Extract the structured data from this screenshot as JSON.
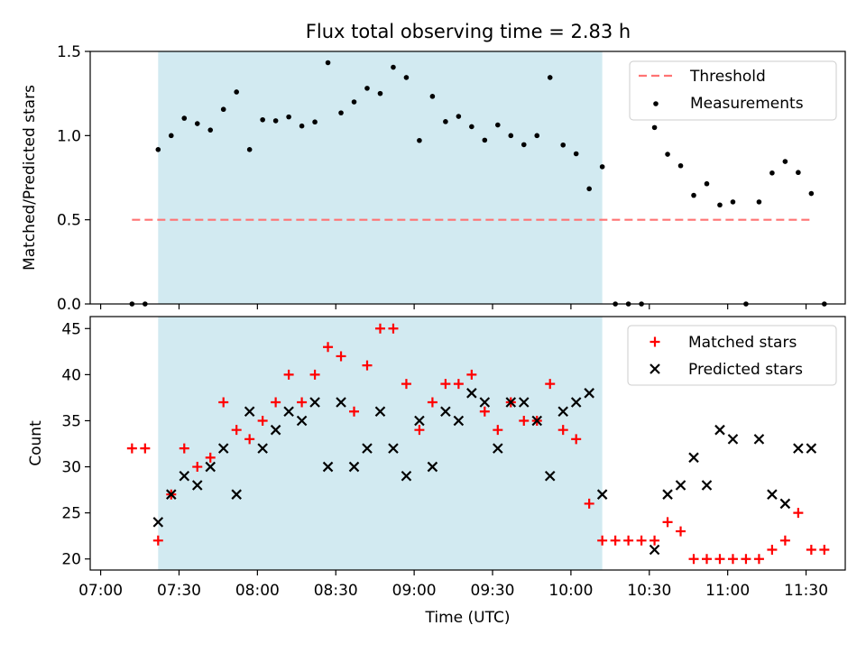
{
  "chart_data": {
    "type": "scatter",
    "title": "Flux total observing time = 2.83 h",
    "xlabel": "Time (UTC)",
    "x_ticks": [
      "07:00",
      "07:30",
      "08:00",
      "08:30",
      "09:00",
      "09:30",
      "10:00",
      "10:30",
      "11:00",
      "11:30"
    ],
    "x_tick_minutes": [
      420,
      450,
      480,
      510,
      540,
      570,
      600,
      630,
      660,
      690
    ],
    "xlim": [
      416,
      705
    ],
    "shaded_span": {
      "start": "07:22",
      "end": "10:12",
      "color": "#add8e6"
    },
    "x_times": [
      "07:12",
      "07:17",
      "07:22",
      "07:27",
      "07:32",
      "07:37",
      "07:42",
      "07:47",
      "07:52",
      "07:57",
      "08:02",
      "08:07",
      "08:12",
      "08:17",
      "08:22",
      "08:27",
      "08:32",
      "08:37",
      "08:42",
      "08:47",
      "08:52",
      "08:57",
      "09:02",
      "09:07",
      "09:12",
      "09:17",
      "09:22",
      "09:27",
      "09:32",
      "09:37",
      "09:42",
      "09:47",
      "09:52",
      "09:57",
      "10:02",
      "10:07",
      "10:12",
      "10:17",
      "10:22",
      "10:27",
      "10:32",
      "10:37",
      "10:42",
      "10:47",
      "10:52",
      "10:57",
      "11:02",
      "11:07",
      "11:12",
      "11:17",
      "11:22",
      "11:27",
      "11:32",
      "11:37"
    ],
    "panels": [
      {
        "ylabel": "Matched/Predicted stars",
        "ylim": [
          0,
          1.5
        ],
        "yticks": [
          "0.0",
          "0.5",
          "1.0",
          "1.5"
        ],
        "ytick_values": [
          0,
          0.5,
          1.0,
          1.5
        ],
        "legend_position": "upper right",
        "series": [
          {
            "name": "Threshold",
            "style": "dashed-line",
            "color": "#ff7373",
            "value": 0.5,
            "x_range": [
              "07:12",
              "11:32"
            ]
          },
          {
            "name": "Measurements",
            "style": "dot",
            "color": "#000000",
            "values": [
              0,
              0,
              0.917,
              1.0,
              1.103,
              1.071,
              1.033,
              1.156,
              1.259,
              0.917,
              1.094,
              1.088,
              1.111,
              1.057,
              1.081,
              1.433,
              1.135,
              1.2,
              1.281,
              1.25,
              1.406,
              1.345,
              0.971,
              1.233,
              1.083,
              1.114,
              1.053,
              0.973,
              1.063,
              1.0,
              0.946,
              1.0,
              1.345,
              0.944,
              0.892,
              0.684,
              0.815,
              0,
              0,
              0,
              1.048,
              0.889,
              0.821,
              0.645,
              0.714,
              0.588,
              0.606,
              0,
              0.606,
              0.778,
              0.846,
              0.781,
              0.656,
              0
            ]
          }
        ]
      },
      {
        "ylabel": "Count",
        "ylim": [
          18.8,
          46.3
        ],
        "yticks": [
          "20",
          "25",
          "30",
          "35",
          "40",
          "45"
        ],
        "ytick_values": [
          20,
          25,
          30,
          35,
          40,
          45
        ],
        "legend_position": "upper right",
        "series": [
          {
            "name": "Matched stars",
            "style": "plus",
            "color": "#ff0000",
            "values": [
              32,
              32,
              22,
              27,
              32,
              30,
              31,
              37,
              34,
              33,
              35,
              37,
              40,
              37,
              40,
              43,
              42,
              36,
              41,
              45,
              45,
              39,
              34,
              37,
              39,
              39,
              40,
              36,
              34,
              37,
              35,
              35,
              39,
              34,
              33,
              26,
              22,
              22,
              22,
              22,
              22,
              24,
              23,
              20,
              20,
              20,
              20,
              20,
              20,
              21,
              22,
              25,
              21,
              21
            ]
          },
          {
            "name": "Predicted stars",
            "style": "x",
            "color": "#000000",
            "values": [
              null,
              null,
              24,
              27,
              29,
              28,
              30,
              32,
              27,
              36,
              32,
              34,
              36,
              35,
              37,
              30,
              37,
              30,
              32,
              36,
              32,
              29,
              35,
              30,
              36,
              35,
              38,
              37,
              32,
              37,
              37,
              35,
              29,
              36,
              37,
              38,
              27,
              null,
              null,
              null,
              21,
              27,
              28,
              31,
              28,
              34,
              33,
              null,
              33,
              27,
              26,
              32,
              32,
              null
            ]
          }
        ]
      }
    ]
  }
}
